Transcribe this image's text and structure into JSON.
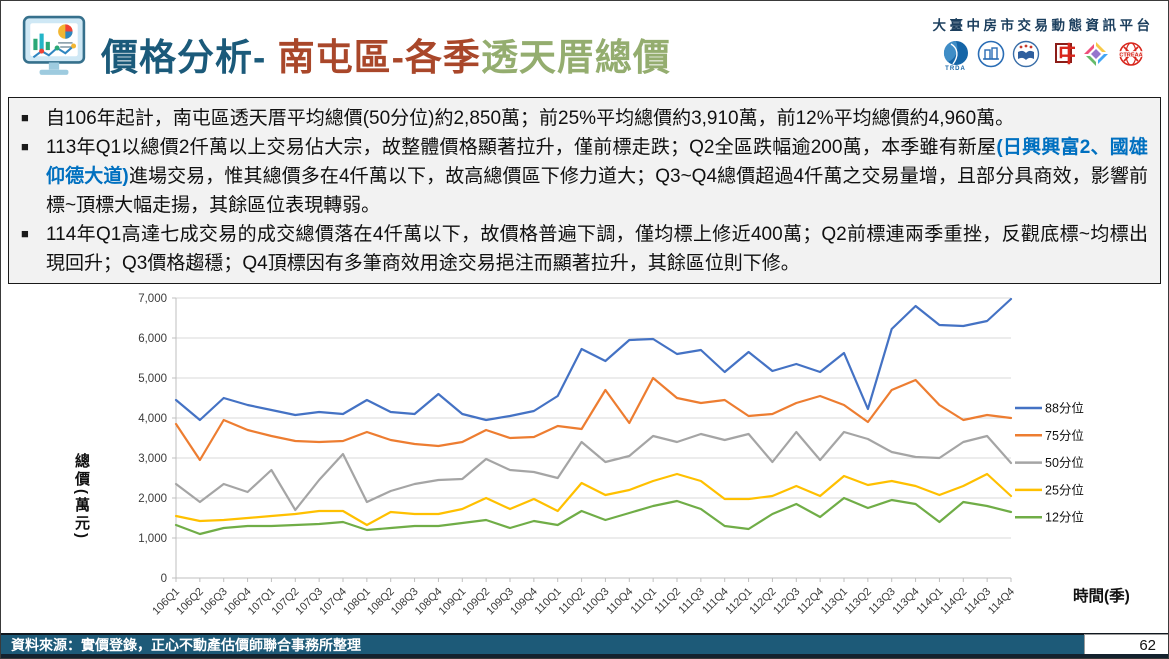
{
  "header": {
    "title_part1": "價格分析-",
    "title_part2": " 南屯區-各季",
    "title_part3": "透天厝總價",
    "platform_name": "大臺中房市交易動態資訊平台",
    "logos": [
      {
        "name": "trda-logo",
        "text": "TRDA"
      },
      {
        "name": "association-building-logo",
        "text": ""
      },
      {
        "name": "appraiser-emblem-logo",
        "text": ""
      },
      {
        "name": "chung-logo",
        "text": "中"
      },
      {
        "name": "diamond-logo",
        "text": ""
      },
      {
        "name": "ctreaa-logo",
        "text": "CTREAA"
      }
    ]
  },
  "bullets": {
    "marker": "■",
    "b1": "自106年起計，南屯區透天厝平均總價(50分位)約2,850萬；前25%平均總價約3,910萬，前12%平均總價約4,960萬。",
    "b2_pre": "113年Q1以總價2仟萬以上交易佔大宗，故整體價格顯著拉升，僅前標走跌；Q2全區跌幅逾200萬，本季雖有新屋",
    "b2_highlight": "(日興興富2、國雄仰德大道)",
    "b2_post": "進場交易，惟其總價多在4仟萬以下，故高總價區下修力道大；Q3~Q4總價超過4仟萬之交易量增，且部分具商效，影響前標~頂標大幅走揚，其餘區位表現轉弱。",
    "b3": "114年Q1高達七成交易的成交總價落在4仟萬以下，故價格普遍下調，僅均標上修近400萬；Q2前標連兩季重挫，反觀底標~均標出現回升；Q3價格趨穩；Q4頂標因有多筆商效用途交易挹注而顯著拉升，其餘區位則下修。"
  },
  "chart_data": {
    "type": "line",
    "title": "",
    "xlabel": "時間(季)",
    "ylabel": "總價(萬元)",
    "ylim": [
      0,
      7000
    ],
    "ytick_interval": 1000,
    "grid": true,
    "legend_position": "right",
    "x_categories": [
      "106Q1",
      "106Q2",
      "106Q3",
      "106Q4",
      "107Q1",
      "107Q2",
      "107Q3",
      "107Q4",
      "108Q1",
      "108Q2",
      "108Q3",
      "108Q4",
      "109Q1",
      "109Q2",
      "109Q3",
      "109Q4",
      "110Q1",
      "110Q2",
      "110Q3",
      "110Q4",
      "111Q1",
      "111Q2",
      "111Q3",
      "111Q4",
      "112Q1",
      "112Q2",
      "112Q3",
      "112Q4",
      "113Q1",
      "113Q2",
      "113Q3",
      "113Q4",
      "114Q1",
      "114Q2",
      "114Q3",
      "114Q4"
    ],
    "series": [
      {
        "name": "88分位",
        "color": "#4472C4",
        "values": [
          4450,
          3950,
          4500,
          4325,
          4200,
          4075,
          4150,
          4100,
          4450,
          4150,
          4100,
          4600,
          4100,
          3950,
          4050,
          4175,
          4550,
          5725,
          5425,
          5950,
          5975,
          5600,
          5700,
          5150,
          5650,
          5175,
          5350,
          5150,
          5625,
          4225,
          6225,
          6800,
          6325,
          6300,
          6425,
          6975
        ]
      },
      {
        "name": "75分位",
        "color": "#ED7D31",
        "values": [
          3850,
          2950,
          3950,
          3700,
          3550,
          3425,
          3400,
          3425,
          3650,
          3450,
          3350,
          3300,
          3400,
          3700,
          3500,
          3525,
          3800,
          3725,
          4700,
          3875,
          5000,
          4500,
          4375,
          4450,
          4050,
          4100,
          4375,
          4550,
          4325,
          3900,
          4700,
          4950,
          4325,
          3950,
          4075,
          4000
        ]
      },
      {
        "name": "50分位",
        "color": "#A5A5A5",
        "values": [
          2350,
          1900,
          2350,
          2150,
          2700,
          1700,
          2450,
          3100,
          1900,
          2175,
          2350,
          2450,
          2475,
          2975,
          2700,
          2650,
          2500,
          3400,
          2900,
          3050,
          3550,
          3400,
          3600,
          3450,
          3600,
          2900,
          3650,
          2950,
          3650,
          3475,
          3150,
          3025,
          3000,
          3400,
          3550,
          2875
        ]
      },
      {
        "name": "25分位",
        "color": "#FFC000",
        "values": [
          1550,
          1425,
          1450,
          1500,
          1550,
          1600,
          1675,
          1675,
          1325,
          1650,
          1600,
          1600,
          1725,
          2000,
          1725,
          1975,
          1675,
          2375,
          2075,
          2200,
          2425,
          2600,
          2425,
          1975,
          1975,
          2050,
          2300,
          2050,
          2550,
          2325,
          2425,
          2300,
          2075,
          2300,
          2600,
          2050
        ]
      },
      {
        "name": "12分位",
        "color": "#70AD47",
        "values": [
          1325,
          1100,
          1250,
          1300,
          1300,
          1325,
          1350,
          1400,
          1200,
          1250,
          1300,
          1300,
          1375,
          1450,
          1250,
          1425,
          1325,
          1675,
          1450,
          1625,
          1800,
          1925,
          1725,
          1300,
          1225,
          1600,
          1850,
          1525,
          2000,
          1750,
          1950,
          1850,
          1400,
          1900,
          1800,
          1650
        ]
      }
    ]
  },
  "footer": {
    "source": "資料來源：實價登錄，正心不動產估價師聯合事務所整理",
    "page_number": "62"
  }
}
